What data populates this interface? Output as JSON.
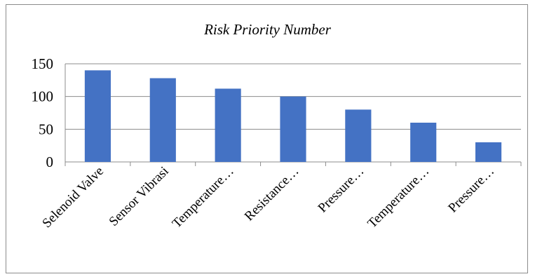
{
  "chart_data": {
    "type": "bar",
    "title": "Risk Priority Number",
    "categories": [
      "Selenoid Valve",
      "Sensor Vibrasi",
      "Temperature…",
      "Resistance…",
      "Pressure…",
      "Temperature…",
      "Pressure…"
    ],
    "values": [
      140,
      128,
      112,
      100,
      80,
      60,
      30
    ],
    "ylim": [
      0,
      150
    ],
    "yticks": [
      0,
      50,
      100,
      150
    ],
    "grid": true,
    "bar_color": "#4472c4",
    "grid_color": "#8c8c8c"
  }
}
